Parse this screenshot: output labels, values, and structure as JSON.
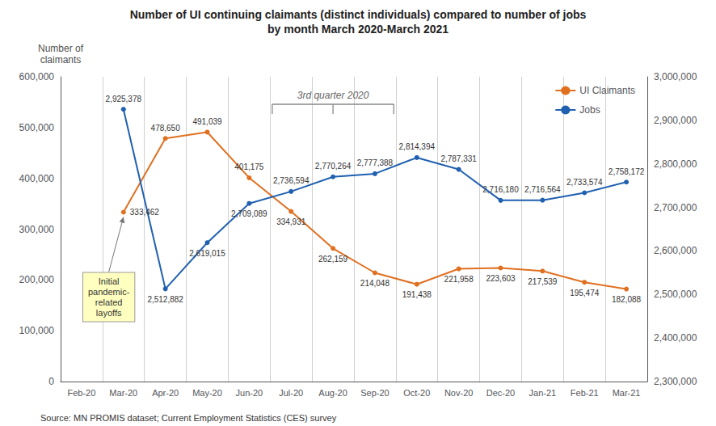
{
  "chart_data": {
    "type": "line",
    "title": "Number of UI continuing claimants (distinct individuals) compared to number of jobs",
    "subtitle": "by month March 2020-March 2021",
    "ylabel": "Number of\nclaimants",
    "categories": [
      "Feb-20",
      "Mar-20",
      "Apr-20",
      "May-20",
      "Jun-20",
      "Jul-20",
      "Aug-20",
      "Sep-20",
      "Oct-20",
      "Nov-20",
      "Dec-20",
      "Jan-21",
      "Feb-21",
      "Mar-21"
    ],
    "series": [
      {
        "name": "UI Claimants",
        "color": "#E07020",
        "marker": "circle",
        "values": [
          null,
          333462,
          478650,
          491039,
          401175,
          334931,
          262159,
          214048,
          191438,
          221958,
          223603,
          217539,
          195474,
          182088
        ],
        "value_labels": [
          null,
          "333,462",
          "478,650",
          "491,039",
          "401,175",
          "334,931",
          "262,159",
          "214,048",
          "191,438",
          "221,958",
          "223,603",
          "217,539",
          "195,474",
          "182,088"
        ]
      },
      {
        "name": "Jobs",
        "color": "#2060B0",
        "marker": "circle",
        "axis": "y2",
        "values": [
          null,
          2925378,
          2512882,
          2619015,
          2709089,
          2736594,
          2770264,
          2777388,
          2814394,
          2787331,
          2716180,
          2716564,
          2733574,
          2758172
        ],
        "value_labels": [
          null,
          "2,925,378",
          "2,512,882",
          "2,619,015",
          "2,709,089",
          "2,736,594",
          "2,770,264",
          "2,777,388",
          "2,814,394",
          "2,787,331",
          "2,716,180",
          "2,716,564",
          "2,733,574",
          "2,758,172"
        ]
      }
    ],
    "ylim": [
      0,
      600000
    ],
    "yticks": [
      0,
      {
        "value": 100000,
        "label": "100,000"
      },
      {
        "value": 200000,
        "label": "200,000"
      },
      {
        "value": 300000,
        "label": "300,000"
      },
      {
        "value": 400000,
        "label": "400,000"
      },
      {
        "value": 500000,
        "label": "500,000"
      },
      {
        "value": 600000,
        "label": "600,000"
      }
    ],
    "y2lim": [
      2300000,
      3000000
    ],
    "y2ticks": [
      {
        "value": 2300000,
        "label": "2,300,000"
      },
      {
        "value": 2400000,
        "label": "2,400,000"
      },
      {
        "value": 2500000,
        "label": "2,500,000"
      },
      {
        "value": 2600000,
        "label": "2,600,000"
      },
      {
        "value": 2700000,
        "label": "2,700,000"
      },
      {
        "value": 2800000,
        "label": "2,800,000"
      },
      {
        "value": 2900000,
        "label": "2,900,000"
      },
      {
        "value": 3000000,
        "label": "3,000,000"
      }
    ],
    "data_labels": true,
    "grid": "x",
    "legend": "upper right",
    "annotations": [
      {
        "text": "Initial\npandemic-\nrelated\nlayoffs",
        "x": "Mar-20",
        "series": "UI Claimants"
      },
      {
        "text": "3rd quarter 2020",
        "x": [
          "Jul-20",
          "Sep-20"
        ]
      }
    ],
    "source": "Source: MN PROMIS dataset; Current Employment Statistics (CES) survey"
  }
}
